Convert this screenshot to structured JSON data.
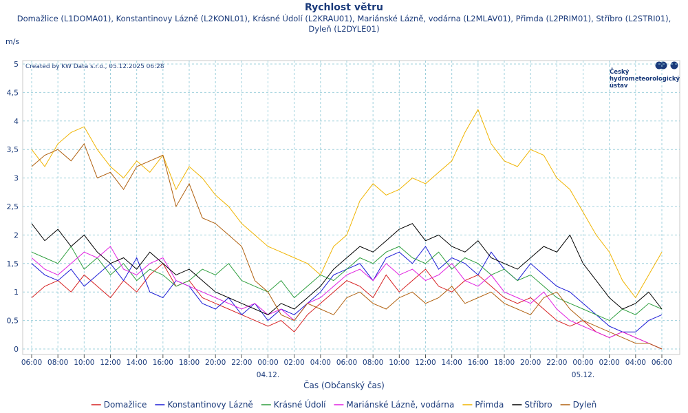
{
  "chart_data": {
    "type": "line",
    "title": "Rychlost větru",
    "subtitle": "Domažlice (L1DOMA01), Konstantinovy Lázně (L2KONL01), Krásné Údolí (L2KRAU01), Mariánské Lázně, vodárna (L2MLAV01), Přimda (L2PRIM01), Stříbro (L2STRI01), Dyleň (L2DYLE01)",
    "y_label": "m/s",
    "x_label": "Čas (Občanský čas)",
    "credit": "Created by KW Data s.r.o., 05.12.2025 06:28",
    "logo": [
      "Český",
      "hydrometeorologický",
      "ústav"
    ],
    "categories": [
      "06:00",
      null,
      "08:00",
      null,
      "10:00",
      null,
      "12:00",
      null,
      "14:00",
      null,
      "16:00",
      null,
      "18:00",
      null,
      "20:00",
      null,
      "22:00",
      null,
      "00:00",
      null,
      "02:00",
      null,
      "04:00",
      null,
      "06:00",
      null,
      "08:00",
      null,
      "10:00",
      null,
      "12:00",
      null,
      "14:00",
      null,
      "16:00",
      null,
      "18:00",
      null,
      "20:00",
      null,
      "22:00",
      null,
      "00:00",
      null,
      "02:00",
      null,
      "04:00",
      null,
      "06:00"
    ],
    "date_labels": [
      {
        "text": "04.12.",
        "category": 18
      },
      {
        "text": "05.12.",
        "category": 42
      }
    ],
    "ylim": [
      0,
      5
    ],
    "yticks": [
      0,
      {
        "value": 0.5,
        "label": "0,5"
      },
      1,
      {
        "value": 1.5,
        "label": "1,5"
      },
      2,
      {
        "value": 2.5,
        "label": "2,5"
      },
      3,
      {
        "value": 3.5,
        "label": "3,5"
      },
      4,
      {
        "value": 4.5,
        "label": "4,5"
      },
      5
    ],
    "grid": true,
    "legend": "bottom",
    "series": [
      {
        "name": "Domažlice",
        "color": "#d62020",
        "values": [
          0.9,
          1.1,
          1.2,
          1.0,
          1.3,
          1.1,
          0.9,
          1.2,
          1.0,
          1.3,
          1.5,
          1.1,
          1.2,
          0.9,
          0.8,
          0.7,
          0.6,
          0.5,
          0.4,
          0.5,
          0.3,
          0.6,
          0.8,
          1.0,
          1.2,
          1.1,
          0.9,
          1.3,
          1.0,
          1.2,
          1.4,
          1.1,
          1.0,
          1.2,
          1.3,
          1.1,
          0.9,
          0.8,
          0.9,
          0.7,
          0.5,
          0.4,
          0.5,
          0.3,
          0.2,
          0.3,
          0.2,
          0.1,
          0.0
        ]
      },
      {
        "name": "Konstantinovy Lázně",
        "color": "#1c1cd6",
        "values": [
          1.5,
          1.3,
          1.2,
          1.4,
          1.1,
          1.3,
          1.5,
          1.2,
          1.6,
          1.0,
          0.9,
          1.2,
          1.1,
          0.8,
          0.7,
          0.9,
          0.6,
          0.8,
          0.5,
          0.7,
          0.6,
          0.8,
          1.0,
          1.3,
          1.4,
          1.5,
          1.2,
          1.6,
          1.7,
          1.5,
          1.8,
          1.4,
          1.6,
          1.5,
          1.3,
          1.7,
          1.4,
          1.2,
          1.5,
          1.3,
          1.1,
          1.0,
          0.8,
          0.6,
          0.4,
          0.3,
          0.3,
          0.5,
          0.6
        ]
      },
      {
        "name": "Krásné Údolí",
        "color": "#2e9e3e",
        "values": [
          1.7,
          1.6,
          1.5,
          1.8,
          1.4,
          1.6,
          1.3,
          1.5,
          1.2,
          1.4,
          1.3,
          1.1,
          1.2,
          1.4,
          1.3,
          1.5,
          1.2,
          1.1,
          1.0,
          1.2,
          0.9,
          1.1,
          1.3,
          1.2,
          1.4,
          1.6,
          1.5,
          1.7,
          1.8,
          1.6,
          1.5,
          1.7,
          1.4,
          1.6,
          1.5,
          1.3,
          1.4,
          1.2,
          1.3,
          1.1,
          0.9,
          0.8,
          0.7,
          0.6,
          0.5,
          0.7,
          0.6,
          0.8,
          0.7
        ]
      },
      {
        "name": "Mariánské Lázně, vodárna",
        "color": "#e020e0",
        "values": [
          1.6,
          1.4,
          1.3,
          1.5,
          1.7,
          1.6,
          1.8,
          1.4,
          1.3,
          1.5,
          1.6,
          1.2,
          1.1,
          1.0,
          0.9,
          0.8,
          0.7,
          0.8,
          0.6,
          0.7,
          0.5,
          0.8,
          0.9,
          1.1,
          1.3,
          1.4,
          1.2,
          1.5,
          1.3,
          1.4,
          1.2,
          1.3,
          1.5,
          1.2,
          1.1,
          1.3,
          1.0,
          0.9,
          0.8,
          1.0,
          0.7,
          0.5,
          0.4,
          0.3,
          0.2,
          0.3,
          0.2,
          0.1,
          0.0
        ]
      },
      {
        "name": "Přimda",
        "color": "#f0b400",
        "values": [
          3.5,
          3.2,
          3.6,
          3.8,
          3.9,
          3.5,
          3.2,
          3.0,
          3.3,
          3.1,
          3.4,
          2.8,
          3.2,
          3.0,
          2.7,
          2.5,
          2.2,
          2.0,
          1.8,
          1.7,
          1.6,
          1.5,
          1.3,
          1.8,
          2.0,
          2.6,
          2.9,
          2.7,
          2.8,
          3.0,
          2.9,
          3.1,
          3.3,
          3.8,
          4.2,
          3.6,
          3.3,
          3.2,
          3.5,
          3.4,
          3.0,
          2.8,
          2.4,
          2.0,
          1.7,
          1.2,
          0.9,
          1.3,
          1.7
        ]
      },
      {
        "name": "Stříbro",
        "color": "#000000",
        "values": [
          2.2,
          1.9,
          2.1,
          1.8,
          2.0,
          1.7,
          1.5,
          1.6,
          1.4,
          1.7,
          1.5,
          1.3,
          1.4,
          1.2,
          1.0,
          0.9,
          0.8,
          0.7,
          0.6,
          0.8,
          0.7,
          0.9,
          1.1,
          1.4,
          1.6,
          1.8,
          1.7,
          1.9,
          2.1,
          2.2,
          1.9,
          2.0,
          1.8,
          1.7,
          1.9,
          1.6,
          1.5,
          1.4,
          1.6,
          1.8,
          1.7,
          2.0,
          1.5,
          1.2,
          0.9,
          0.7,
          0.8,
          1.0,
          0.7
        ]
      },
      {
        "name": "Dyleň",
        "color": "#b0600f",
        "values": [
          3.2,
          3.4,
          3.5,
          3.3,
          3.6,
          3.0,
          3.1,
          2.8,
          3.2,
          3.3,
          3.4,
          2.5,
          2.9,
          2.3,
          2.2,
          2.0,
          1.8,
          1.2,
          1.0,
          0.6,
          0.5,
          0.8,
          0.7,
          0.6,
          0.9,
          1.0,
          0.8,
          0.7,
          0.9,
          1.0,
          0.8,
          0.9,
          1.1,
          0.8,
          0.9,
          1.0,
          0.8,
          0.7,
          0.6,
          0.9,
          1.0,
          0.7,
          0.5,
          0.4,
          0.3,
          0.2,
          0.1,
          0.1,
          0.0
        ]
      }
    ]
  }
}
